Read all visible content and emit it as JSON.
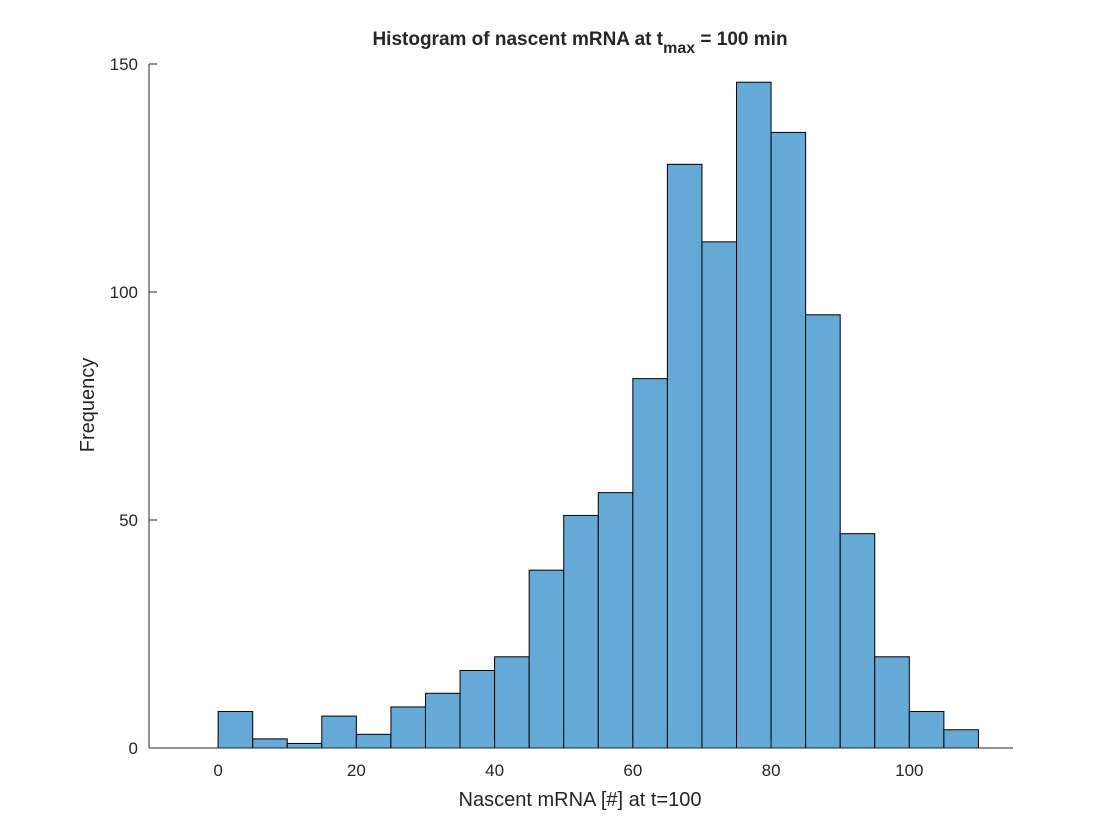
{
  "chart_data": {
    "type": "bar",
    "subtype": "histogram",
    "title": {
      "prefix": "Histogram of nascent mRNA at t",
      "subscript": "max",
      "suffix": " = 100 min"
    },
    "xlabel": "Nascent mRNA [#] at t=100",
    "ylabel": "Frequency",
    "xlim": [
      -10,
      115
    ],
    "ylim": [
      0,
      150
    ],
    "xticks": [
      0,
      20,
      40,
      60,
      80,
      100
    ],
    "yticks": [
      0,
      50,
      100,
      150
    ],
    "bin_edges": [
      0,
      5,
      10,
      15,
      20,
      25,
      30,
      35,
      40,
      45,
      50,
      55,
      60,
      65,
      70,
      75,
      80,
      85,
      90,
      95,
      100,
      105,
      110
    ],
    "values": [
      8,
      2,
      1,
      7,
      3,
      9,
      12,
      17,
      20,
      39,
      51,
      56,
      81,
      128,
      111,
      146,
      135,
      95,
      47,
      20,
      8,
      4
    ],
    "bar_color": "#65a9d7",
    "edge_color": "#000000",
    "axis_color": "#262626",
    "grid": false,
    "box": false
  }
}
